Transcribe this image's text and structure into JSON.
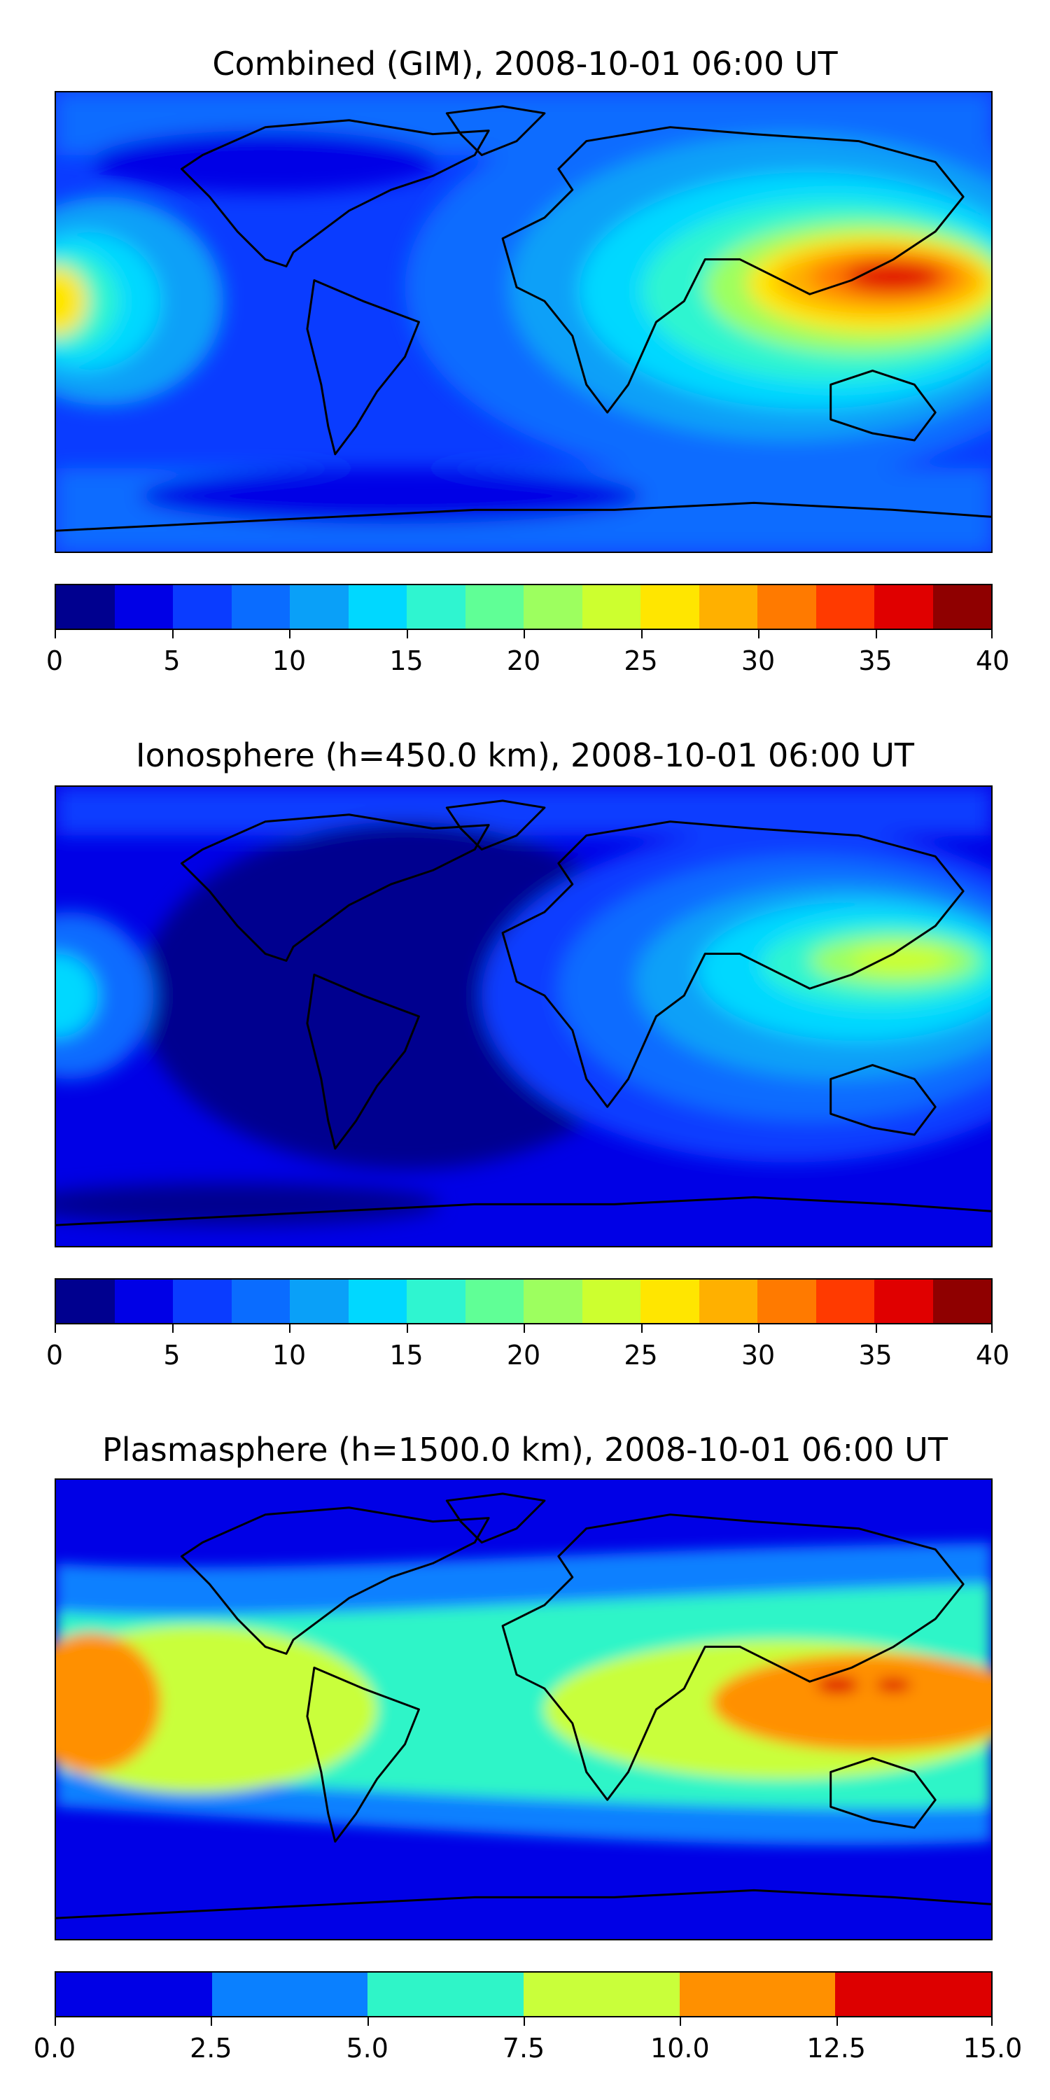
{
  "panels": [
    {
      "title": "Combined (GIM), 2008-10-01 06:00 UT",
      "colorbar": {
        "colors": [
          "#00008f",
          "#0000e6",
          "#0a3cff",
          "#0a6cff",
          "#0aa0f8",
          "#00d8ff",
          "#2ff5d0",
          "#60ff96",
          "#9dff5f",
          "#cdff2f",
          "#ffe600",
          "#ffb000",
          "#ff7a00",
          "#ff3a00",
          "#e00000",
          "#8f0000"
        ],
        "ticks": [
          "0",
          "5",
          "10",
          "15",
          "20",
          "25",
          "30",
          "35",
          "40"
        ]
      },
      "background": "#0a3cff"
    },
    {
      "title": "Ionosphere  (h=450.0 km), 2008-10-01 06:00 UT",
      "colorbar": {
        "colors": [
          "#00008f",
          "#0000e6",
          "#0a3cff",
          "#0a6cff",
          "#0aa0f8",
          "#00d8ff",
          "#2ff5d0",
          "#60ff96",
          "#9dff5f",
          "#cdff2f",
          "#ffe600",
          "#ffb000",
          "#ff7a00",
          "#ff3a00",
          "#e00000",
          "#8f0000"
        ],
        "ticks": [
          "0",
          "5",
          "10",
          "15",
          "20",
          "25",
          "30",
          "35",
          "40"
        ]
      },
      "background": "#0000e6"
    },
    {
      "title": "Plasmasphere (h=1500.0 km), 2008-10-01 06:00 UT",
      "colorbar": {
        "colors": [
          "#0000e6",
          "#0a80ff",
          "#2ff5c8",
          "#c9ff3a",
          "#ff9000",
          "#dd0000"
        ],
        "ticks": [
          "0.0",
          "2.5",
          "5.0",
          "7.5",
          "10.0",
          "12.5",
          "15.0"
        ]
      },
      "background": "#0000e6"
    }
  ]
}
